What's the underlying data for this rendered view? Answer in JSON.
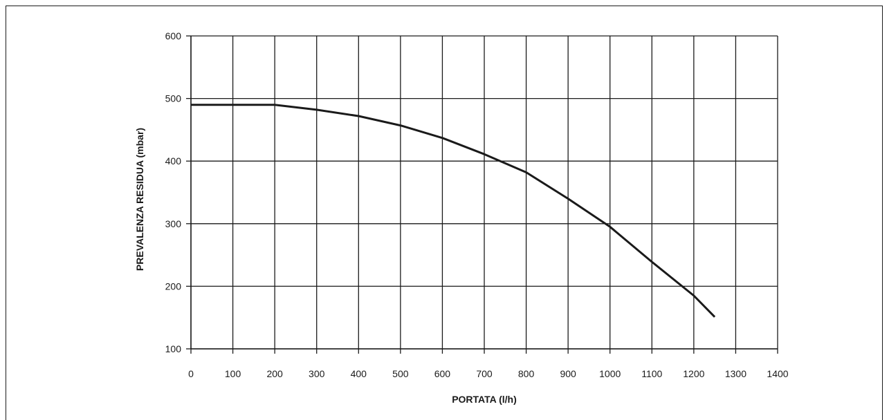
{
  "chart_data": {
    "type": "line",
    "title": "",
    "xlabel": "PORTATA (l/h)",
    "ylabel": "PREVALENZA RESIDUA (mbar)",
    "xlim": [
      0,
      1400
    ],
    "ylim": [
      100,
      600
    ],
    "x_ticks": [
      0,
      100,
      200,
      300,
      400,
      500,
      600,
      700,
      800,
      900,
      1000,
      1100,
      1200,
      1300,
      1400
    ],
    "y_ticks": [
      100,
      200,
      300,
      400,
      500,
      600
    ],
    "grid": true,
    "series": [
      {
        "x": [
          0,
          200,
          300,
          400,
          500,
          600,
          700,
          800,
          900,
          1000,
          1100,
          1200,
          1250
        ],
        "y": [
          490,
          490,
          482,
          472,
          457,
          437,
          411,
          382,
          340,
          295,
          239,
          185,
          151
        ],
        "color": "#1a1a1a"
      }
    ]
  }
}
